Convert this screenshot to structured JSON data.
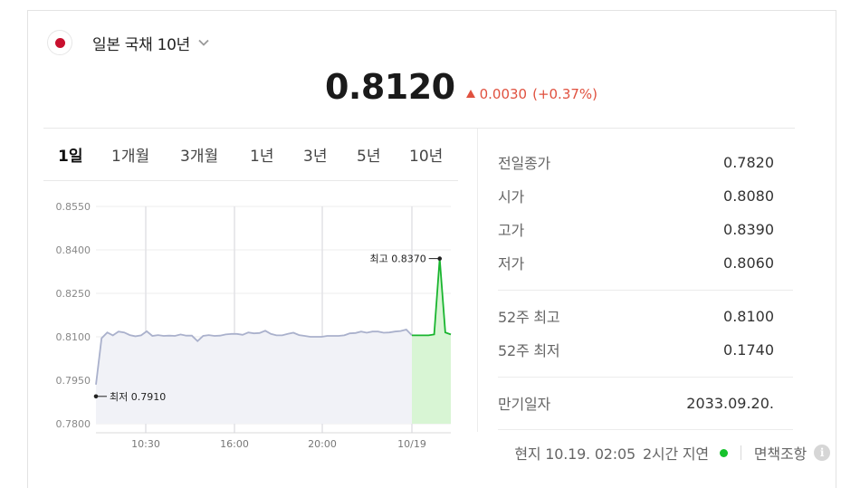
{
  "header": {
    "bond_name": "일본 국채 10년",
    "flag_icon": "japan-flag-icon",
    "dropdown_icon": "chevron-down-icon"
  },
  "quote": {
    "price": "0.8120",
    "change": "0.0030",
    "change_pct": "(+0.37%)",
    "direction": "up",
    "up_color": "#e0513f"
  },
  "tabs": [
    {
      "label": "1일",
      "active": true
    },
    {
      "label": "1개월",
      "active": false
    },
    {
      "label": "3개월",
      "active": false
    },
    {
      "label": "1년",
      "active": false
    },
    {
      "label": "3년",
      "active": false
    },
    {
      "label": "5년",
      "active": false
    },
    {
      "label": "10년",
      "active": false
    }
  ],
  "chart_data": {
    "type": "line",
    "y_ticks": [
      "0.8550",
      "0.8400",
      "0.8250",
      "0.8100",
      "0.7950",
      "0.7800"
    ],
    "ylim": [
      0.78,
      0.855
    ],
    "x_ticks": [
      "10:30",
      "16:00",
      "20:00",
      "10/19"
    ],
    "series": [
      {
        "values": [
          0.7935,
          0.8095,
          0.8115,
          0.8105,
          0.8118,
          0.8115,
          0.8106,
          0.8102,
          0.8105,
          0.8119,
          0.8103,
          0.8106,
          0.8103,
          0.8104,
          0.8103,
          0.8108,
          0.8104,
          0.8104,
          0.8085,
          0.8103,
          0.8106,
          0.8103,
          0.8104,
          0.8108,
          0.811,
          0.811,
          0.8107,
          0.8115,
          0.8112,
          0.8113,
          0.8121,
          0.811,
          0.8105,
          0.8105,
          0.811,
          0.8114,
          0.8106,
          0.8103,
          0.81,
          0.81,
          0.81,
          0.8103,
          0.8103,
          0.8103,
          0.8105,
          0.8112,
          0.8113,
          0.8118,
          0.8114,
          0.8118,
          0.8118,
          0.8114,
          0.8115,
          0.8118,
          0.812,
          0.8125,
          0.8105
        ],
        "color": "#aab1cc",
        "fill": "#f1f2f7"
      },
      {
        "values": [
          0.8105,
          0.8105,
          0.8105,
          0.8105,
          0.8108,
          0.837,
          0.8115,
          0.8108
        ],
        "color": "#19b52f",
        "fill": "#d8f5d4"
      }
    ],
    "annotations": {
      "high_label": "최고 0.8370",
      "low_label": "최저 0.7910"
    }
  },
  "stats": {
    "group1": [
      {
        "label": "전일종가",
        "value": "0.7820"
      },
      {
        "label": "시가",
        "value": "0.8080"
      },
      {
        "label": "고가",
        "value": "0.8390"
      },
      {
        "label": "저가",
        "value": "0.8060"
      }
    ],
    "group2": [
      {
        "label": "52주 최고",
        "value": "0.8100"
      },
      {
        "label": "52주 최저",
        "value": "0.1740"
      }
    ],
    "group3": [
      {
        "label": "만기일자",
        "value": "2033.09.20."
      }
    ]
  },
  "footer": {
    "time": "현지 10.19. 02:05",
    "delay": "2시간 지연",
    "live_color": "#16c22c",
    "disclaimer": "면책조항",
    "info_icon": "info-icon"
  }
}
